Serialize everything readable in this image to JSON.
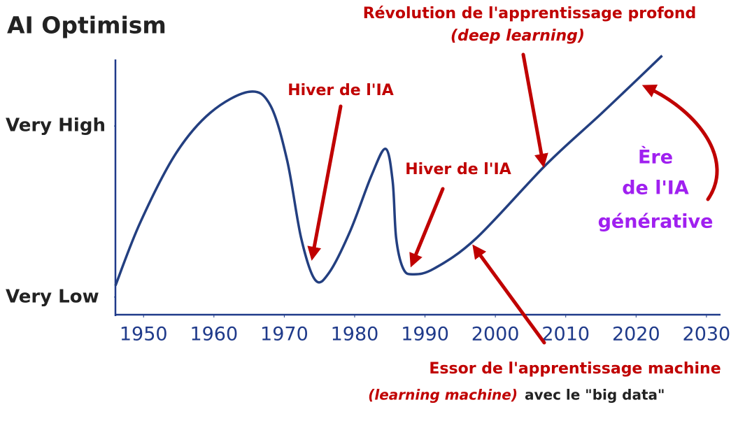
{
  "chart_data": {
    "type": "line",
    "title": "AI Optimism",
    "x": [
      1946,
      1949.5,
      1954.5,
      1959.5,
      1965,
      1968,
      1970.4,
      1972.4,
      1974.4,
      1976.4,
      1979.4,
      1982.4,
      1984.4,
      1985.4,
      1985.9,
      1986.9,
      1988.3,
      1991.3,
      1997.3,
      2007.3,
      2015.2,
      2023.7
    ],
    "values": [
      1.6,
      4.9,
      8.5,
      10.7,
      11.8,
      11.1,
      8.2,
      4.1,
      1.9,
      2.3,
      4.5,
      7.4,
      8.8,
      7.1,
      4.1,
      2.5,
      2.2,
      2.5,
      4.1,
      8.0,
      10.7,
      13.7
    ],
    "color": "#233f80",
    "xlim": [
      1946,
      2032
    ],
    "xticks": [
      1950,
      1960,
      1970,
      1980,
      1990,
      2000,
      2010,
      2020,
      2030
    ],
    "ylim": [
      0,
      13.5
    ],
    "yticks": [
      {
        "value": 1,
        "label": "Very Low"
      },
      {
        "value": 10,
        "label": "Very High"
      }
    ],
    "annotations": [
      "Révolution de l'apprentissage profond",
      "(deep learning)",
      "Hiver de l'IA",
      "Hiver de l'IA",
      "Ère",
      "de l'IA",
      "générative",
      "Essor de l'apprentissage machine",
      "(learning machine)",
      "avec le \"big data\""
    ]
  }
}
